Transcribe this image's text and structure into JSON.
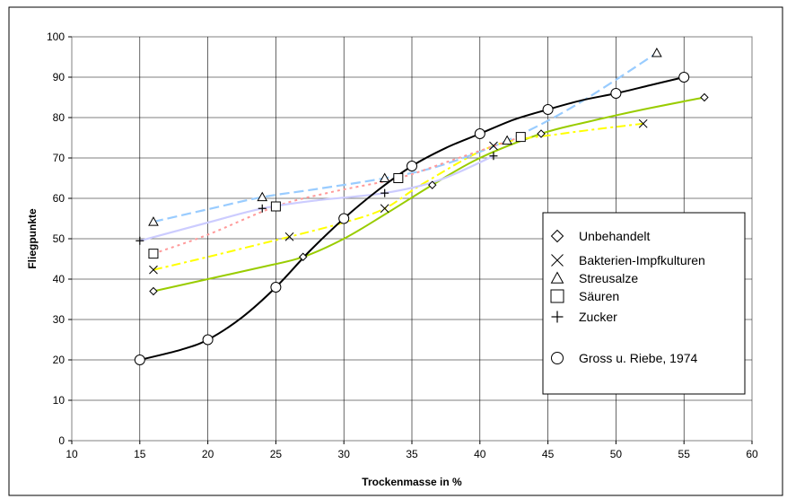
{
  "chart_data": {
    "type": "line",
    "xlabel": "Trockenmasse in %",
    "ylabel": "Fliegpunkte",
    "xlim": [
      10,
      60
    ],
    "ylim": [
      0,
      100
    ],
    "xticks": [
      "10",
      "15",
      "20",
      "25",
      "30",
      "35",
      "40",
      "45",
      "50",
      "55",
      "60"
    ],
    "yticks": [
      "0",
      "10",
      "20",
      "30",
      "40",
      "50",
      "60",
      "70",
      "80",
      "90",
      "100"
    ],
    "grid": true,
    "legend_position": "right",
    "series": [
      {
        "name": "Unbehandelt",
        "marker": "diamond",
        "color": "#99cc00",
        "points": [
          [
            16,
            37
          ],
          [
            27,
            45.5
          ],
          [
            36.5,
            63.3
          ],
          [
            44.5,
            76
          ],
          [
            56.5,
            85
          ]
        ],
        "curve": [
          [
            16,
            37
          ],
          [
            20,
            40
          ],
          [
            24,
            43
          ],
          [
            27,
            45.5
          ],
          [
            30,
            50
          ],
          [
            33,
            56
          ],
          [
            36.5,
            63.3
          ],
          [
            40,
            70
          ],
          [
            44.5,
            76
          ],
          [
            48,
            79
          ],
          [
            52,
            82
          ],
          [
            56.5,
            85
          ]
        ]
      },
      {
        "name": "Bakterien-Impfkulturen",
        "marker": "x",
        "color": "#ffff00",
        "points": [
          [
            16,
            42.3
          ],
          [
            26,
            50.5
          ],
          [
            33,
            57.5
          ],
          [
            41,
            73
          ],
          [
            52,
            78.5
          ]
        ],
        "curve": [
          [
            16,
            42.3
          ],
          [
            20,
            45.5
          ],
          [
            26,
            50.5
          ],
          [
            30,
            54
          ],
          [
            33,
            57.5
          ],
          [
            36,
            64
          ],
          [
            41,
            73
          ],
          [
            46,
            76
          ],
          [
            52,
            78.5
          ]
        ]
      },
      {
        "name": "Streusalze",
        "marker": "triangle",
        "color": "#99ccff",
        "points": [
          [
            16,
            54.2
          ],
          [
            24,
            60.3
          ],
          [
            33,
            65
          ],
          [
            42,
            74.3
          ],
          [
            53,
            96
          ]
        ],
        "curve": [
          [
            16,
            54.2
          ],
          [
            20,
            57.3
          ],
          [
            24,
            60.3
          ],
          [
            28,
            62.3
          ],
          [
            33,
            65
          ],
          [
            37,
            68
          ],
          [
            42,
            74.3
          ],
          [
            47,
            83
          ],
          [
            53,
            96
          ]
        ]
      },
      {
        "name": "Säuren",
        "marker": "square",
        "color": "#ff9999",
        "points": [
          [
            16,
            46.3
          ],
          [
            25,
            58
          ],
          [
            34,
            65
          ],
          [
            43,
            75.2
          ]
        ],
        "curve": [
          [
            16,
            46.3
          ],
          [
            20,
            51
          ],
          [
            25,
            58
          ],
          [
            29,
            61.5
          ],
          [
            34,
            65
          ],
          [
            38,
            69.5
          ],
          [
            43,
            75.2
          ]
        ]
      },
      {
        "name": "Zucker",
        "marker": "plus",
        "color": "#ccccff",
        "points": [
          [
            15,
            49.5
          ],
          [
            24,
            57.5
          ],
          [
            33,
            61.3
          ],
          [
            41,
            70.5
          ]
        ],
        "curve": [
          [
            15,
            49.5
          ],
          [
            20,
            54
          ],
          [
            24,
            57.5
          ],
          [
            28,
            59.5
          ],
          [
            33,
            61.3
          ],
          [
            37,
            64.5
          ],
          [
            41,
            70.5
          ]
        ]
      },
      {
        "name": "Gross u. Riebe, 1974",
        "marker": "circle",
        "color": "#000000",
        "points": [
          [
            15,
            20
          ],
          [
            20,
            25
          ],
          [
            25,
            38
          ],
          [
            30,
            55
          ],
          [
            35,
            68
          ],
          [
            40,
            76
          ],
          [
            45,
            82
          ],
          [
            50,
            86
          ],
          [
            55,
            90
          ]
        ],
        "curve": [
          [
            15,
            20
          ],
          [
            18,
            22.5
          ],
          [
            20,
            25
          ],
          [
            22.5,
            30.5
          ],
          [
            25,
            38
          ],
          [
            27.5,
            47
          ],
          [
            30,
            55
          ],
          [
            32.5,
            62
          ],
          [
            35,
            68
          ],
          [
            37.5,
            72.5
          ],
          [
            40,
            76
          ],
          [
            42.5,
            79.5
          ],
          [
            45,
            82
          ],
          [
            47.5,
            84.3
          ],
          [
            50,
            86
          ],
          [
            52.5,
            88
          ],
          [
            55,
            90
          ]
        ]
      }
    ]
  }
}
